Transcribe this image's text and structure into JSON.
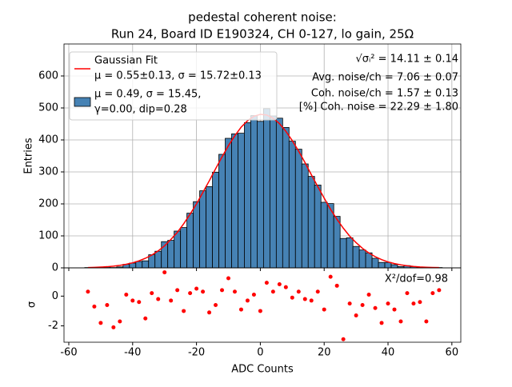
{
  "chart_data": [
    {
      "type": "histogram",
      "title": [
        "pedestal coherent noise:",
        "Run 24, Board ID E190324, CH 0-127, lo gain, 25Ω"
      ],
      "ylabel": "Entries",
      "bins": [
        -55,
        -53,
        -51,
        -49,
        -47,
        -45,
        -43,
        -41,
        -39,
        -37,
        -35,
        -33,
        -31,
        -29,
        -27,
        -25,
        -23,
        -21,
        -19,
        -17,
        -15,
        -13,
        -11,
        -9,
        -7,
        -5,
        -3,
        -1,
        1,
        3,
        5,
        7,
        9,
        11,
        13,
        15,
        17,
        19,
        21,
        23,
        25,
        27,
        29,
        31,
        33,
        35,
        37,
        39,
        41,
        43,
        45,
        47,
        49,
        51,
        53,
        55,
        57
      ],
      "values": [
        1,
        1,
        0,
        3,
        1,
        3,
        11,
        15,
        20,
        22,
        41,
        52,
        82,
        86,
        115,
        126,
        171,
        207,
        241,
        254,
        299,
        355,
        405,
        419,
        421,
        454,
        476,
        458,
        498,
        475,
        468,
        439,
        396,
        371,
        325,
        286,
        259,
        205,
        201,
        161,
        92,
        94,
        67,
        56,
        47,
        30,
        17,
        17,
        10,
        4,
        7,
        4,
        2,
        0,
        1,
        1
      ],
      "color": "#4682b4",
      "legend_lines": [
        "μ = 0.49, σ = 15.45,",
        "γ=0.00, dip=0.28"
      ],
      "fit": {
        "name": "Gaussian Fit",
        "label": "μ = 0.55±0.13, σ = 15.72±0.13",
        "color": "#ff0000",
        "x": [
          -54,
          -52,
          -50,
          -48,
          -46,
          -44,
          -42,
          -40,
          -38,
          -36,
          -34,
          -32,
          -30,
          -28,
          -26,
          -24,
          -22,
          -20,
          -18,
          -16,
          -14,
          -12,
          -10,
          -8,
          -6,
          -4,
          -2,
          0,
          2,
          4,
          6,
          8,
          10,
          12,
          14,
          16,
          18,
          20,
          22,
          24,
          26,
          28,
          30,
          32,
          34,
          36,
          38,
          40,
          42,
          44,
          46,
          48,
          50,
          52,
          54,
          56
        ],
        "values": [
          1.0,
          1.5,
          2.4,
          3.6,
          5.3,
          7.8,
          11.2,
          15.8,
          21.9,
          30,
          40,
          53,
          69,
          89,
          111,
          138,
          168,
          200,
          236,
          272,
          310,
          347,
          382,
          413,
          440,
          460,
          474,
          480,
          478,
          468,
          451,
          427,
          398,
          365,
          329,
          291,
          254,
          218,
          183,
          152,
          124,
          99,
          79,
          61,
          46.5,
          35,
          25.7,
          18.6,
          13.4,
          9.4,
          6.5,
          4.4,
          2.9,
          1.9,
          1.2,
          0.8
        ]
      },
      "annotations": [
        "√σᵢ² = 14.11 ± 0.14",
        "Avg. noise/ch = 7.06 ± 0.07",
        "Coh. noise/ch = 1.57 ± 0.13",
        "[%] Coh. noise = 22.29  ± 1.80"
      ],
      "xlim": [
        -61.5,
        62.8
      ],
      "xticks": [
        -60,
        -40,
        -20,
        0,
        20,
        40,
        60
      ],
      "ylim": [
        0,
        700
      ],
      "yticks": [
        0,
        100,
        200,
        300,
        400,
        500,
        600
      ],
      "grid": true,
      "legend": "upper left"
    },
    {
      "type": "scatter",
      "xlabel": "ADC Counts",
      "ylabel": "σ",
      "x": [
        -54,
        -52,
        -50,
        -48,
        -46,
        -44,
        -42,
        -40,
        -38,
        -36,
        -34,
        -32,
        -30,
        -28,
        -26,
        -24,
        -22,
        -20,
        -18,
        -16,
        -14,
        -12,
        -10,
        -8,
        -6,
        -4,
        -2,
        0,
        2,
        4,
        6,
        8,
        10,
        12,
        14,
        16,
        18,
        20,
        22,
        24,
        26,
        28,
        30,
        32,
        34,
        36,
        38,
        40,
        42,
        44,
        46,
        48,
        50,
        52,
        54,
        56
      ],
      "values": [
        0.3,
        -0.7,
        -1.8,
        -0.6,
        -2.1,
        -1.7,
        0.1,
        -0.3,
        -0.4,
        -1.5,
        0.2,
        -0.2,
        1.6,
        -0.3,
        0.4,
        -1.0,
        0.2,
        0.5,
        0.3,
        -1.1,
        -0.6,
        0.4,
        1.2,
        0.3,
        -0.9,
        -0.3,
        0.1,
        -1.0,
        0.9,
        0.3,
        0.8,
        0.6,
        -0.1,
        0.3,
        -0.2,
        -0.3,
        0.3,
        -0.9,
        1.3,
        0.7,
        -2.9,
        -0.5,
        -1.3,
        -0.6,
        0.1,
        -0.8,
        -1.8,
        -0.5,
        -0.9,
        -1.7,
        0.2,
        -0.5,
        -0.4,
        -1.7,
        0.2,
        0.4
      ],
      "color": "#ff0000",
      "annotation": "X²/dof=0.98",
      "xlim": [
        -61.5,
        62.8
      ],
      "xticks": [
        -60,
        -40,
        -20,
        0,
        20,
        40,
        60
      ],
      "ylim": [
        -3.1,
        1.9
      ],
      "yticks": [
        -2,
        0
      ],
      "grid": false
    }
  ]
}
